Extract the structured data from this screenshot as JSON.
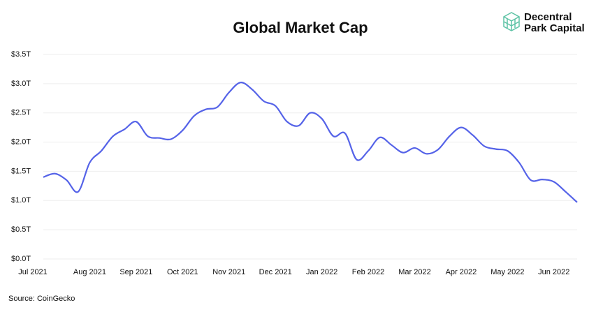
{
  "chart_data": {
    "type": "line",
    "title": "Global Market Cap",
    "brand": [
      "Decentral",
      "Park Capital"
    ],
    "source": "Source: CoinGecko",
    "categories": [
      "Jul 2021",
      null,
      null,
      null,
      "Aug 2021",
      null,
      null,
      null,
      "Sep 2021",
      null,
      null,
      null,
      "Oct 2021",
      null,
      null,
      null,
      "Nov 2021",
      null,
      null,
      null,
      "Dec 2021",
      null,
      null,
      null,
      "Jan 2022",
      null,
      null,
      null,
      "Feb 2022",
      null,
      null,
      null,
      "Mar 2022",
      null,
      null,
      null,
      "Apr 2022",
      null,
      null,
      null,
      "May 2022",
      null,
      null,
      null,
      "Jun 2022",
      null,
      null
    ],
    "series": [
      {
        "name": "Global Market Cap",
        "color": "#5563e8",
        "values": [
          1.4,
          1.46,
          1.35,
          1.15,
          1.65,
          1.85,
          2.1,
          2.22,
          2.35,
          2.1,
          2.07,
          2.05,
          2.2,
          2.45,
          2.56,
          2.6,
          2.85,
          3.02,
          2.9,
          2.7,
          2.62,
          2.35,
          2.28,
          2.5,
          2.4,
          2.1,
          2.15,
          1.7,
          1.85,
          2.08,
          1.95,
          1.82,
          1.9,
          1.8,
          1.87,
          2.1,
          2.25,
          2.12,
          1.93,
          1.88,
          1.85,
          1.65,
          1.35,
          1.36,
          1.32,
          1.15,
          0.97
        ]
      }
    ],
    "ylim": [
      0,
      3.5
    ],
    "yticks": [
      {
        "value": 0,
        "label": "$0.0T"
      },
      {
        "value": 0.5,
        "label": "$0.5T"
      },
      {
        "value": 1,
        "label": "$1.0T"
      },
      {
        "value": 1.5,
        "label": "$1.5T"
      },
      {
        "value": 2,
        "label": "$2.0T"
      },
      {
        "value": 2.5,
        "label": "$2.5T"
      },
      {
        "value": 3,
        "label": "$3.0T"
      },
      {
        "value": 3.5,
        "label": "$3.5T"
      }
    ],
    "grid": true
  }
}
